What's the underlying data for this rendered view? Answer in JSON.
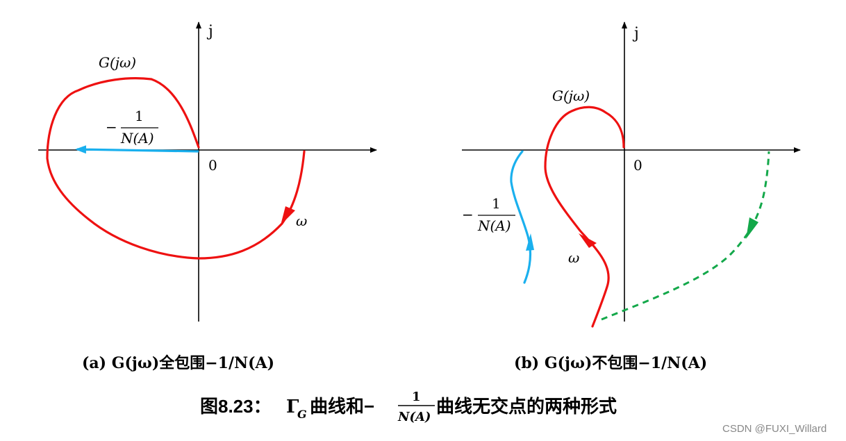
{
  "colors": {
    "curve": "#ee1111",
    "describing": "#1ab0ee",
    "dashed": "#13a84a",
    "axis": "#000000"
  },
  "panel_a": {
    "axis_imag_label": "j",
    "origin_label": "0",
    "curve_label": "G(jω)",
    "omega_label": "ω",
    "neg_inv_label": {
      "minus": "−",
      "numerator": "1",
      "denominator": "N(A)"
    },
    "caption": "(a) G(jω)全包围−1/N(A)"
  },
  "panel_b": {
    "axis_imag_label": "j",
    "origin_label": "0",
    "curve_label": "G(jω)",
    "omega_label": "ω",
    "neg_inv_label": {
      "minus": "−",
      "numerator": "1",
      "denominator": "N(A)"
    },
    "caption": "(b) G(jω)不包围−1/N(A)"
  },
  "figure_title": {
    "prefix": "图8.23：",
    "gamma": "Γ",
    "gamma_sub": "G",
    "middle": "曲线和−",
    "numerator": "1",
    "denominator": "N(A)",
    "suffix": "曲线无交点的两种形式"
  },
  "watermark": "CSDN @FUXI_Willard"
}
